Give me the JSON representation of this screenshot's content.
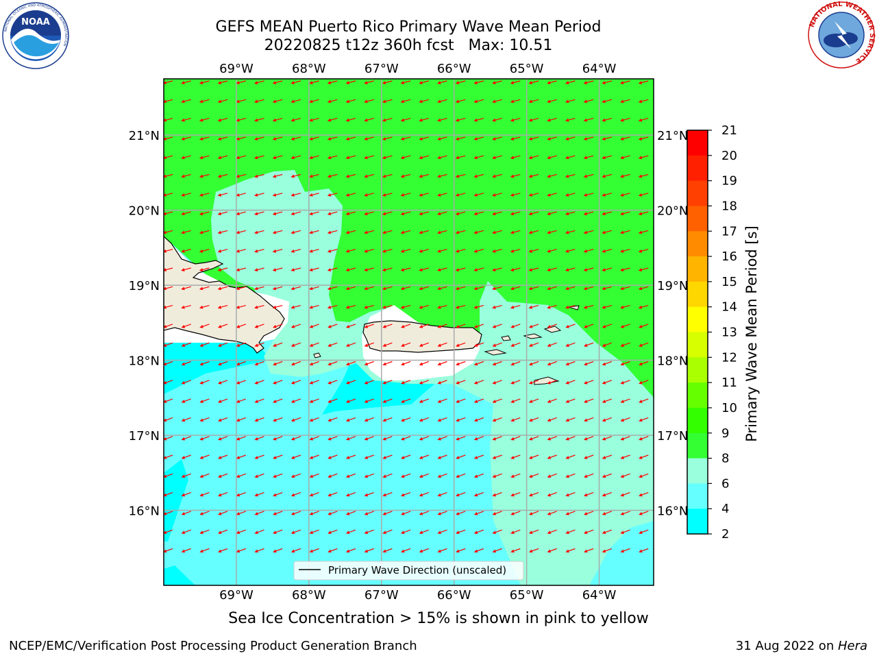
{
  "title": {
    "line1": "GEFS MEAN Puerto Rico Primary Wave Mean Period",
    "line2": "20220825 t12z 360h fcst   Max: 10.51"
  },
  "map": {
    "lon_ticks": [
      "69°W",
      "68°W",
      "67°W",
      "66°W",
      "65°W",
      "64°W"
    ],
    "lat_ticks": [
      "21°N",
      "20°N",
      "19°N",
      "18°N",
      "17°N",
      "16°N"
    ],
    "lon_range": [
      -70.0,
      -63.25
    ],
    "lat_range": [
      15.0,
      21.75
    ],
    "grid": true,
    "fill_colors": {
      "land": "#efecdc",
      "band_10_11": "#33ff33",
      "band_9_10": "#99ffdd",
      "band_8_9": "#66ffff",
      "band_6_8": "#00ffff"
    },
    "arrow_color": "#ff0000",
    "coastline_color": "#000000"
  },
  "legend": {
    "label": "Primary Wave Direction (unscaled)",
    "placement": "bottom-center"
  },
  "colorbar": {
    "label": "Primary Wave Mean Period [s]",
    "ticks": [
      "21",
      "20",
      "19",
      "18",
      "17",
      "16",
      "15",
      "14",
      "13",
      "12",
      "11",
      "10",
      "9",
      "8",
      "6",
      "4",
      "2"
    ],
    "colors": [
      "#ff0000",
      "#ff2000",
      "#ff4000",
      "#ff6000",
      "#ff8c00",
      "#ffb400",
      "#ffd700",
      "#ffff00",
      "#d7ff00",
      "#aaff00",
      "#66ff00",
      "#33ff00",
      "#33ff33",
      "#99ffdd",
      "#66ffff",
      "#00ffff",
      "#0080ff",
      "#0000ff"
    ]
  },
  "subtitle": "Sea Ice Concentration > 15% is shown in pink to yellow",
  "footer": {
    "left": "NCEP/EMC/Verification Post Processing Product Generation Branch",
    "right_date": "31 Aug 2022 on ",
    "right_host": "Hera"
  },
  "logos": {
    "noaa_text": "NOAA",
    "nws_text": "NATIONAL WEATHER SERVICE",
    "noaa_ring_text": "NATIONAL OCEANIC AND ATMOSPHERIC ADMINISTRATION"
  }
}
